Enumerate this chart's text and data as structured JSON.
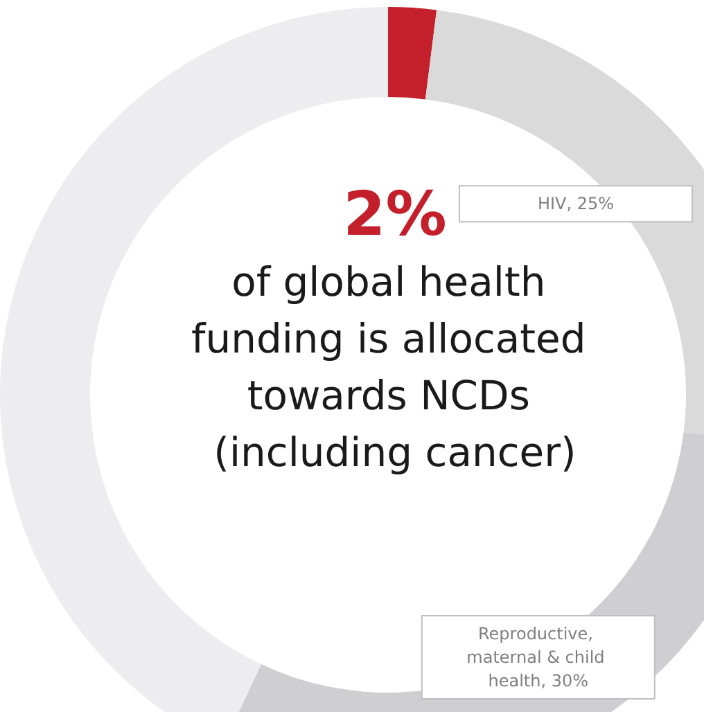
{
  "chart_data": {
    "type": "donut",
    "title": "2%",
    "subtitle": "of global health funding is allocated towards NCDs (including cancer)",
    "categories": [
      null,
      "HIV",
      "Reproductive, maternal & child health",
      null
    ],
    "values": [
      2,
      25,
      30,
      43
    ],
    "colors": [
      "#c3202b",
      "#dadadb",
      "#cfcfd1",
      "#ededef"
    ],
    "value_labels": [
      null,
      "25%",
      "30%",
      null
    ],
    "legend": false
  }
}
